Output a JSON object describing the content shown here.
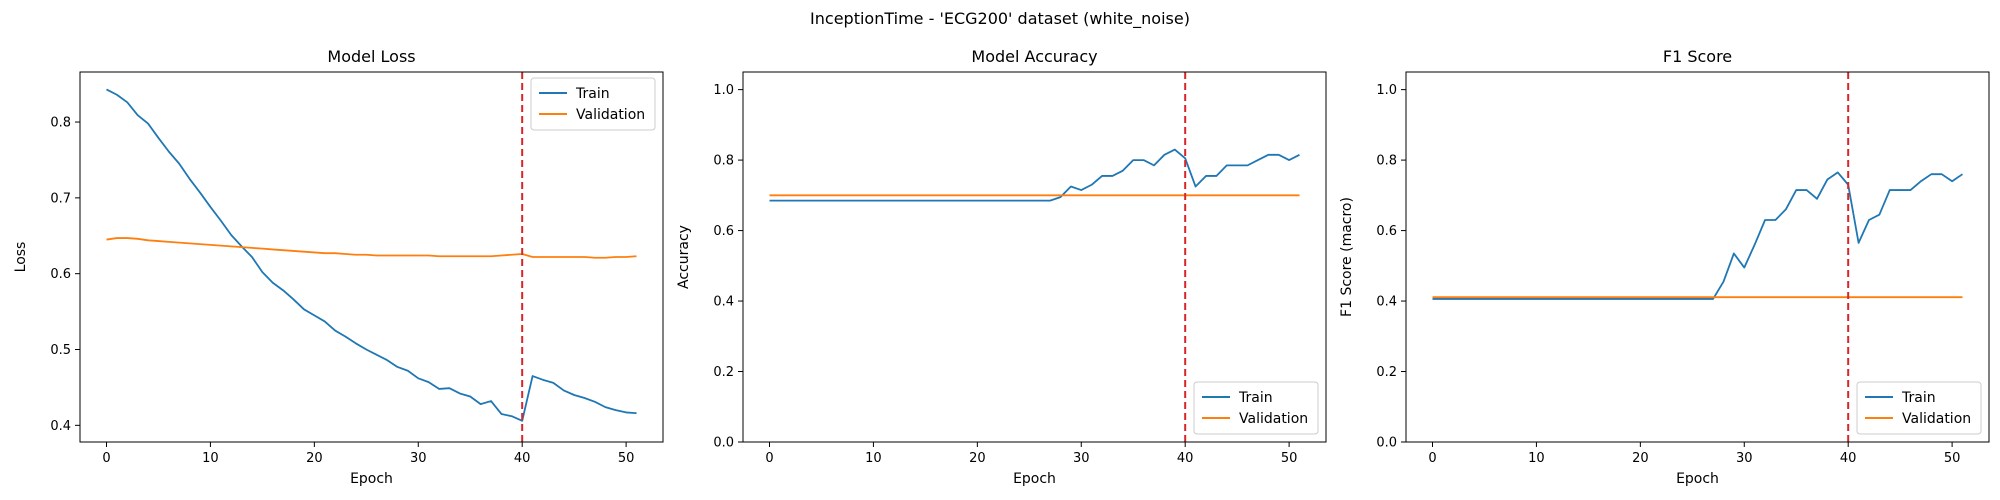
{
  "figure_title": "InceptionTime - 'ECG200' dataset (white_noise)",
  "colors": {
    "train": "#1f77b4",
    "validation": "#ff7f0e",
    "marker": "#d62728"
  },
  "chart_data": [
    {
      "type": "line",
      "title": "Model Loss",
      "xlabel": "Epoch",
      "ylabel": "Loss",
      "xlim": [
        -2.55,
        53.55
      ],
      "ylim": [
        0.378,
        0.866
      ],
      "xticks": [
        0,
        10,
        20,
        30,
        40,
        50
      ],
      "yticks": [
        0.4,
        0.5,
        0.6,
        0.7,
        0.8
      ],
      "ytick_labels": [
        "0.4",
        "0.5",
        "0.6",
        "0.7",
        "0.8"
      ],
      "vline_x": 40,
      "legend_loc": "upper-right",
      "series": [
        {
          "name": "Train",
          "color": "#1f77b4",
          "values": [
            0.843,
            0.836,
            0.826,
            0.809,
            0.798,
            0.779,
            0.761,
            0.745,
            0.725,
            0.707,
            0.688,
            0.67,
            0.651,
            0.636,
            0.622,
            0.602,
            0.588,
            0.578,
            0.566,
            0.553,
            0.545,
            0.537,
            0.525,
            0.517,
            0.508,
            0.5,
            0.493,
            0.486,
            0.477,
            0.472,
            0.462,
            0.457,
            0.448,
            0.449,
            0.442,
            0.438,
            0.428,
            0.432,
            0.415,
            0.412,
            0.406,
            0.465,
            0.46,
            0.456,
            0.446,
            0.44,
            0.436,
            0.431,
            0.424,
            0.42,
            0.417,
            0.416
          ]
        },
        {
          "name": "Validation",
          "color": "#ff7f0e",
          "values": [
            0.645,
            0.647,
            0.647,
            0.646,
            0.644,
            0.643,
            0.642,
            0.641,
            0.64,
            0.639,
            0.638,
            0.637,
            0.636,
            0.635,
            0.634,
            0.633,
            0.632,
            0.631,
            0.63,
            0.629,
            0.628,
            0.627,
            0.627,
            0.626,
            0.625,
            0.625,
            0.624,
            0.624,
            0.624,
            0.624,
            0.624,
            0.624,
            0.623,
            0.623,
            0.623,
            0.623,
            0.623,
            0.623,
            0.624,
            0.625,
            0.626,
            0.622,
            0.622,
            0.622,
            0.622,
            0.622,
            0.622,
            0.621,
            0.621,
            0.622,
            0.622,
            0.623
          ]
        }
      ]
    },
    {
      "type": "line",
      "title": "Model Accuracy",
      "xlabel": "Epoch",
      "ylabel": "Accuracy",
      "xlim": [
        -2.55,
        53.55
      ],
      "ylim": [
        0,
        1.05
      ],
      "xticks": [
        0,
        10,
        20,
        30,
        40,
        50
      ],
      "yticks": [
        0,
        0.2,
        0.4,
        0.6,
        0.8,
        1.0
      ],
      "ytick_labels": [
        "0.0",
        "0.2",
        "0.4",
        "0.6",
        "0.8",
        "1.0"
      ],
      "vline_x": 40,
      "legend_loc": "lower-right",
      "series": [
        {
          "name": "Train",
          "color": "#1f77b4",
          "values": [
            0.685,
            0.685,
            0.685,
            0.685,
            0.685,
            0.685,
            0.685,
            0.685,
            0.685,
            0.685,
            0.685,
            0.685,
            0.685,
            0.685,
            0.685,
            0.685,
            0.685,
            0.685,
            0.685,
            0.685,
            0.685,
            0.685,
            0.685,
            0.685,
            0.685,
            0.685,
            0.685,
            0.685,
            0.695,
            0.725,
            0.715,
            0.73,
            0.755,
            0.755,
            0.77,
            0.8,
            0.8,
            0.785,
            0.815,
            0.83,
            0.805,
            0.725,
            0.755,
            0.755,
            0.785,
            0.785,
            0.785,
            0.8,
            0.815,
            0.815,
            0.8,
            0.815
          ]
        },
        {
          "name": "Validation",
          "color": "#ff7f0e",
          "values": [
            0.7,
            0.7,
            0.7,
            0.7,
            0.7,
            0.7,
            0.7,
            0.7,
            0.7,
            0.7,
            0.7,
            0.7,
            0.7,
            0.7,
            0.7,
            0.7,
            0.7,
            0.7,
            0.7,
            0.7,
            0.7,
            0.7,
            0.7,
            0.7,
            0.7,
            0.7,
            0.7,
            0.7,
            0.7,
            0.7,
            0.7,
            0.7,
            0.7,
            0.7,
            0.7,
            0.7,
            0.7,
            0.7,
            0.7,
            0.7,
            0.7,
            0.7,
            0.7,
            0.7,
            0.7,
            0.7,
            0.7,
            0.7,
            0.7,
            0.7,
            0.7,
            0.7
          ]
        }
      ]
    },
    {
      "type": "line",
      "title": "F1 Score",
      "xlabel": "Epoch",
      "ylabel": "F1 Score (macro)",
      "xlim": [
        -2.55,
        53.55
      ],
      "ylim": [
        0,
        1.05
      ],
      "xticks": [
        0,
        10,
        20,
        30,
        40,
        50
      ],
      "yticks": [
        0,
        0.2,
        0.4,
        0.6,
        0.8,
        1.0
      ],
      "ytick_labels": [
        "0.0",
        "0.2",
        "0.4",
        "0.6",
        "0.8",
        "1.0"
      ],
      "vline_x": 40,
      "legend_loc": "lower-right",
      "series": [
        {
          "name": "Train",
          "color": "#1f77b4",
          "values": [
            0.406,
            0.406,
            0.406,
            0.406,
            0.406,
            0.406,
            0.406,
            0.406,
            0.406,
            0.406,
            0.406,
            0.406,
            0.406,
            0.406,
            0.406,
            0.406,
            0.406,
            0.406,
            0.406,
            0.406,
            0.406,
            0.406,
            0.406,
            0.406,
            0.406,
            0.406,
            0.406,
            0.406,
            0.455,
            0.535,
            0.495,
            0.56,
            0.63,
            0.63,
            0.66,
            0.715,
            0.715,
            0.69,
            0.745,
            0.765,
            0.73,
            0.565,
            0.63,
            0.645,
            0.715,
            0.715,
            0.715,
            0.74,
            0.76,
            0.76,
            0.74,
            0.76
          ]
        },
        {
          "name": "Validation",
          "color": "#ff7f0e",
          "values": [
            0.411,
            0.411,
            0.411,
            0.411,
            0.411,
            0.411,
            0.411,
            0.411,
            0.411,
            0.411,
            0.411,
            0.411,
            0.411,
            0.411,
            0.411,
            0.411,
            0.411,
            0.411,
            0.411,
            0.411,
            0.411,
            0.411,
            0.411,
            0.411,
            0.411,
            0.411,
            0.411,
            0.411,
            0.411,
            0.411,
            0.411,
            0.411,
            0.411,
            0.411,
            0.411,
            0.411,
            0.411,
            0.411,
            0.411,
            0.411,
            0.411,
            0.411,
            0.411,
            0.411,
            0.411,
            0.411,
            0.411,
            0.411,
            0.411,
            0.411,
            0.411,
            0.411
          ]
        }
      ]
    }
  ]
}
